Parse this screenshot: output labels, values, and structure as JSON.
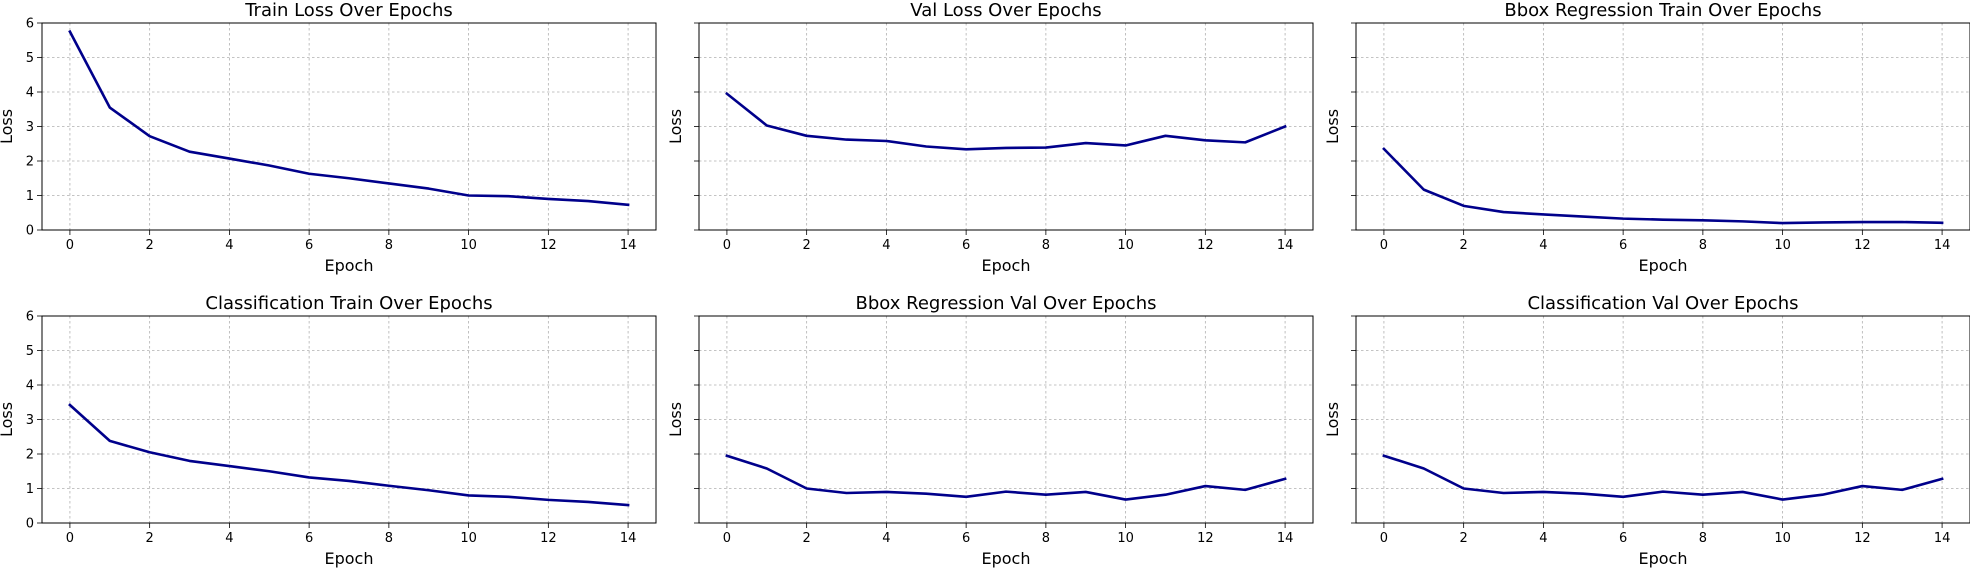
{
  "chart_data": [
    {
      "type": "line",
      "title": "Train Loss Over Epochs",
      "xlabel": "Epoch",
      "ylabel": "Loss",
      "ylim": [
        0,
        6
      ],
      "xlim": [
        -0.7,
        14.7
      ],
      "xticks": [
        0,
        2,
        4,
        6,
        8,
        10,
        12,
        14
      ],
      "yticks": [
        0,
        1,
        2,
        3,
        4,
        5,
        6
      ],
      "show_ytick_labels": true,
      "grid": true,
      "color": "#00008b",
      "x": [
        0,
        1,
        2,
        3,
        4,
        5,
        6,
        7,
        8,
        9,
        10,
        11,
        12,
        13,
        14
      ],
      "values": [
        5.75,
        3.55,
        2.72,
        2.27,
        2.07,
        1.87,
        1.63,
        1.5,
        1.35,
        1.2,
        1.0,
        0.98,
        0.9,
        0.84,
        0.73
      ]
    },
    {
      "type": "line",
      "title": "Val Loss Over Epochs",
      "xlabel": "Epoch",
      "ylabel": "Loss",
      "ylim": [
        0,
        6
      ],
      "xlim": [
        -0.7,
        14.7
      ],
      "xticks": [
        0,
        2,
        4,
        6,
        8,
        10,
        12,
        14
      ],
      "yticks": [
        0,
        1,
        2,
        3,
        4,
        5,
        6
      ],
      "show_ytick_labels": false,
      "grid": true,
      "color": "#00008b",
      "x": [
        0,
        1,
        2,
        3,
        4,
        5,
        6,
        7,
        8,
        9,
        10,
        11,
        12,
        13,
        14
      ],
      "values": [
        3.95,
        3.03,
        2.73,
        2.62,
        2.58,
        2.42,
        2.34,
        2.38,
        2.39,
        2.52,
        2.45,
        2.73,
        2.6,
        2.54,
        3.0
      ]
    },
    {
      "type": "line",
      "title": "Bbox Regression Train Over Epochs",
      "xlabel": "Epoch",
      "ylabel": "Loss",
      "ylim": [
        0,
        6
      ],
      "xlim": [
        -0.7,
        14.7
      ],
      "xticks": [
        0,
        2,
        4,
        6,
        8,
        10,
        12,
        14
      ],
      "yticks": [
        0,
        1,
        2,
        3,
        4,
        5,
        6
      ],
      "show_ytick_labels": false,
      "grid": true,
      "color": "#00008b",
      "x": [
        0,
        1,
        2,
        3,
        4,
        5,
        6,
        7,
        8,
        9,
        10,
        11,
        12,
        13,
        14
      ],
      "values": [
        2.35,
        1.17,
        0.7,
        0.52,
        0.45,
        0.39,
        0.33,
        0.3,
        0.28,
        0.25,
        0.2,
        0.22,
        0.23,
        0.23,
        0.21
      ]
    },
    {
      "type": "line",
      "title": "Classification Train Over Epochs",
      "xlabel": "Epoch",
      "ylabel": "Loss",
      "ylim": [
        0,
        6
      ],
      "xlim": [
        -0.7,
        14.7
      ],
      "xticks": [
        0,
        2,
        4,
        6,
        8,
        10,
        12,
        14
      ],
      "yticks": [
        0,
        1,
        2,
        3,
        4,
        5,
        6
      ],
      "show_ytick_labels": true,
      "grid": true,
      "color": "#00008b",
      "x": [
        0,
        1,
        2,
        3,
        4,
        5,
        6,
        7,
        8,
        9,
        10,
        11,
        12,
        13,
        14
      ],
      "values": [
        3.42,
        2.38,
        2.05,
        1.8,
        1.65,
        1.5,
        1.32,
        1.22,
        1.08,
        0.95,
        0.8,
        0.76,
        0.67,
        0.61,
        0.52
      ]
    },
    {
      "type": "line",
      "title": "Bbox Regression Val Over Epochs",
      "xlabel": "Epoch",
      "ylabel": "Loss",
      "ylim": [
        0,
        6
      ],
      "xlim": [
        -0.7,
        14.7
      ],
      "xticks": [
        0,
        2,
        4,
        6,
        8,
        10,
        12,
        14
      ],
      "yticks": [
        0,
        1,
        2,
        3,
        4,
        5,
        6
      ],
      "show_ytick_labels": false,
      "grid": true,
      "color": "#00008b",
      "x": [
        0,
        1,
        2,
        3,
        4,
        5,
        6,
        7,
        8,
        9,
        10,
        11,
        12,
        13,
        14
      ],
      "values": [
        1.95,
        1.58,
        1.0,
        0.87,
        0.9,
        0.85,
        0.76,
        0.91,
        0.82,
        0.9,
        0.68,
        0.82,
        1.07,
        0.96,
        1.28
      ]
    },
    {
      "type": "line",
      "title": "Classification Val Over Epochs",
      "xlabel": "Epoch",
      "ylabel": "Loss",
      "ylim": [
        0,
        6
      ],
      "xlim": [
        -0.7,
        14.7
      ],
      "xticks": [
        0,
        2,
        4,
        6,
        8,
        10,
        12,
        14
      ],
      "yticks": [
        0,
        1,
        2,
        3,
        4,
        5,
        6
      ],
      "show_ytick_labels": false,
      "grid": true,
      "color": "#00008b",
      "x": [
        0,
        1,
        2,
        3,
        4,
        5,
        6,
        7,
        8,
        9,
        10,
        11,
        12,
        13,
        14
      ],
      "values": [
        1.95,
        1.58,
        1.0,
        0.87,
        0.9,
        0.85,
        0.76,
        0.91,
        0.82,
        0.9,
        0.68,
        0.82,
        1.07,
        0.96,
        1.28
      ]
    }
  ]
}
